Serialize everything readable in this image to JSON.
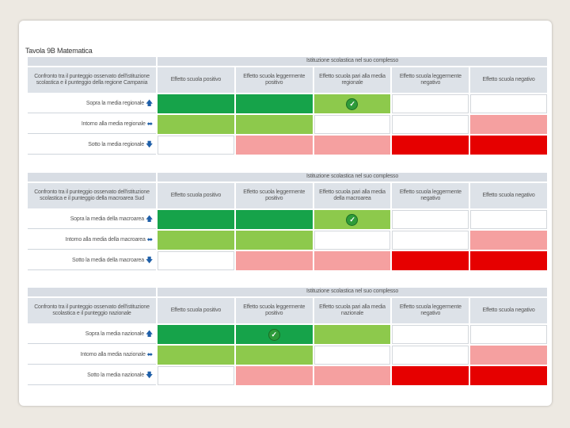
{
  "title": "Tavola 9B Matematica",
  "columns": [
    "Effetto scuola positivo",
    "Effetto scuola leggermente positivo",
    "Effetto scuola pari alla media regionale",
    "Effetto scuola leggermente negativo",
    "Effetto scuola negativo"
  ],
  "tables": [
    {
      "band": "Istituzione scolastica nel suo complesso",
      "header": "Confronto tra il punteggio osservato dell'istituzione scolastica e il punteggio della regione Campania",
      "middle_col": "Effetto scuola pari alla media regionale",
      "rows": [
        {
          "label": "Sopra la media regionale",
          "arrow": "up"
        },
        {
          "label": "Intorno alla media regionale",
          "arrow": "both"
        },
        {
          "label": "Sotto la media regionale",
          "arrow": "down"
        }
      ]
    },
    {
      "band": "Istituzione scolastica nel suo complesso",
      "header": "Confronto tra il punteggio osservato dell'istituzione scolastica e il punteggio della macroarea Sud",
      "middle_col": "Effetto scuola pari alla media della macroarea",
      "rows": [
        {
          "label": "Sopra la media della macroarea",
          "arrow": "up"
        },
        {
          "label": "Intorno alla media della macroarea",
          "arrow": "both"
        },
        {
          "label": "Sotto la media della macroarea",
          "arrow": "down"
        }
      ]
    },
    {
      "band": "Istituzione scolastica nel suo complesso",
      "header": "Confronto tra il punteggio osservato dell'istituzione scolastica e il punteggio nazionale",
      "middle_col": "Effetto scuola pari alla media nazionale",
      "rows": [
        {
          "label": "Sopra la media nazionale",
          "arrow": "up"
        },
        {
          "label": "Intorno alla media nazionale",
          "arrow": "both"
        },
        {
          "label": "Sotto la media nazionale",
          "arrow": "down"
        }
      ]
    }
  ],
  "check_icon": "check-circle-icon"
}
